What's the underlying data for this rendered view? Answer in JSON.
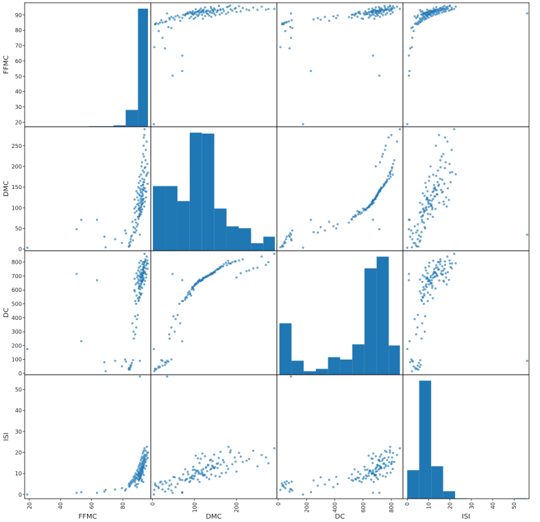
{
  "chart_data": {
    "type": "scatter_matrix",
    "variables": [
      "FFMC",
      "DMC",
      "DC",
      "ISI"
    ],
    "colors": {
      "bar": "#1f77b4",
      "point": "#1f77b4"
    },
    "ranges": {
      "FFMC": [
        17.0,
        98.0
      ],
      "DMC": [
        -4.0,
        296.0
      ],
      "DC": [
        -10.0,
        882.0
      ],
      "ISI": [
        -2.0,
        57.0
      ]
    },
    "ticks": {
      "FFMC": [
        20,
        40,
        60,
        80
      ],
      "DMC": [
        0,
        100,
        200
      ],
      "DC": [
        0,
        200,
        400,
        600,
        800
      ],
      "ISI": [
        0,
        10,
        20,
        30,
        40,
        50
      ]
    },
    "y_ticks": {
      "FFMC": [
        20,
        30,
        40,
        50,
        60,
        70,
        80,
        90
      ],
      "DMC": [
        0,
        50,
        100,
        150,
        200,
        250
      ],
      "DC": [
        0,
        100,
        200,
        300,
        400,
        500,
        600,
        700,
        800
      ],
      "ISI": [
        0,
        10,
        20,
        30,
        40,
        50
      ]
    },
    "histograms": {
      "FFMC": {
        "bin_edges": [
          18.7,
          26.6,
          34.5,
          42.4,
          50.3,
          58.2,
          66.1,
          74.0,
          81.9,
          89.8,
          96.2
        ],
        "counts": [
          1,
          0,
          0,
          0,
          1,
          2,
          2,
          5,
          63,
          443
        ]
      },
      "DMC": {
        "bin_edges": [
          1.1,
          30.3,
          59.5,
          88.7,
          117.9,
          147.1,
          176.3,
          205.5,
          234.7,
          263.9,
          291.3
        ],
        "counts": [
          69,
          69,
          53,
          126,
          125,
          45,
          26,
          24,
          8,
          15
        ]
      },
      "DC": {
        "bin_edges": [
          7.9,
          93.9,
          179.9,
          265.9,
          351.9,
          437.9,
          523.9,
          609.9,
          695.9,
          781.9,
          860.6
        ],
        "counts": [
          44,
          12,
          3,
          5,
          15,
          13,
          26,
          91,
          101,
          25
        ]
      },
      "ISI": {
        "bin_edges": [
          0.0,
          5.6,
          11.2,
          16.8,
          22.4,
          28.0,
          33.6,
          39.2,
          44.8,
          50.4,
          56.1
        ],
        "counts": [
          65,
          269,
          74,
          17,
          1,
          0,
          0,
          0,
          0,
          1
        ]
      }
    },
    "points": {
      "FFMC": [
        18.7,
        50.4,
        53.4,
        63.5,
        68.2,
        69.0,
        75.1,
        79.5,
        81.5,
        82.1,
        83.9,
        84.0,
        84.2,
        84.6,
        85.0,
        85.1,
        85.4,
        85.8,
        86.2,
        86.6,
        86.9,
        87.1,
        87.5,
        87.6,
        87.8,
        88.0,
        88.1,
        88.3,
        88.6,
        88.8,
        88.9,
        89.2,
        89.3,
        89.6,
        89.7,
        89.9,
        90.0,
        90.1,
        90.2,
        90.3,
        90.4,
        90.5,
        90.6,
        90.7,
        90.8,
        90.9,
        91.0,
        91.1,
        91.2,
        91.3,
        91.4,
        91.5,
        91.6,
        91.7,
        91.8,
        91.9,
        92.0,
        92.1,
        92.2,
        92.3,
        92.4,
        92.5,
        92.6,
        92.7,
        92.8,
        92.9,
        93.0,
        93.1,
        93.2,
        93.3,
        93.4,
        93.5,
        93.6,
        93.7,
        93.8,
        93.9,
        94.0,
        94.2,
        94.3,
        94.5,
        94.8,
        95.0,
        95.2,
        95.5,
        95.8,
        96.0,
        96.2,
        91.0,
        92.1,
        93.5,
        90.6,
        94.3,
        92.4,
        91.7,
        93.2,
        89.7,
        95.1,
        92.9,
        91.4,
        90.1,
        93.7,
        92.6,
        88.0,
        94.6,
        91.8,
        92.5,
        93.9,
        90.9,
        91.6,
        92.2,
        93.4,
        89.1,
        94.1,
        92.8,
        91.2,
        90.3,
        93.0,
        92.0,
        88.7,
        95.4,
        91.9,
        93.3,
        90.7,
        92.7
      ],
      "DMC": [
        3.2,
        48.0,
        70.8,
        71.0,
        30.0,
        4.4,
        24.0,
        15.0,
        45.0,
        38.0,
        6.3,
        6.2,
        14.0,
        9.0,
        18.0,
        24.0,
        30.0,
        33.0,
        66.0,
        21.0,
        53.0,
        41.0,
        98.0,
        120.0,
        88.0,
        50.0,
        71.0,
        102.0,
        64.0,
        140.0,
        92.0,
        108.0,
        125.0,
        135.0,
        78.0,
        150.0,
        110.0,
        118.0,
        97.0,
        160.0,
        105.0,
        95.0,
        132.0,
        175.0,
        85.0,
        147.0,
        129.0,
        112.0,
        100.0,
        165.0,
        142.0,
        122.0,
        137.0,
        180.0,
        117.0,
        153.0,
        200.0,
        108.0,
        128.0,
        145.0,
        210.0,
        96.0,
        170.0,
        133.0,
        119.0,
        190.0,
        155.0,
        230.0,
        143.0,
        162.0,
        250.0,
        270.0,
        224.0,
        186.0,
        103.0,
        276.0,
        290.0,
        115.0,
        147.0,
        198.0,
        240.0,
        125.0,
        139.0,
        181.0,
        206.0,
        158.0,
        185.0,
        35.0,
        90.0,
        122.0,
        99.0,
        140.0,
        108.0,
        84.0,
        112.0,
        60.0,
        177.0,
        130.0,
        89.0,
        73.0,
        162.0,
        110.0,
        40.0,
        215.0,
        101.0,
        138.0,
        168.0,
        82.0,
        95.0,
        127.0,
        149.0,
        55.0,
        196.0,
        118.0,
        93.0,
        78.0,
        156.0,
        114.0,
        45.0,
        260.0,
        104.0,
        144.0,
        80.0,
        121.0
      ],
      "DC": [
        175.0,
        715.0,
        231.0,
        670.0,
        80.0,
        15.0,
        90.0,
        50.0,
        100.0,
        85.0,
        34.0,
        26.0,
        40.0,
        30.0,
        45.0,
        55.0,
        60.0,
        75.0,
        360.0,
        95.0,
        300.0,
        250.0,
        600.0,
        680.0,
        590.0,
        410.0,
        520.0,
        640.0,
        500.0,
        720.0,
        560.0,
        650.0,
        690.0,
        705.0,
        540.0,
        740.0,
        660.0,
        675.0,
        610.0,
        760.0,
        645.0,
        620.0,
        700.0,
        795.0,
        580.0,
        730.0,
        695.0,
        668.0,
        630.0,
        770.0,
        715.0,
        685.0,
        710.0,
        810.0,
        670.0,
        745.0,
        690.0,
        660.0,
        698.0,
        725.0,
        720.0,
        615.0,
        785.0,
        705.0,
        672.0,
        800.0,
        750.0,
        740.0,
        718.0,
        765.0,
        760.0,
        780.0,
        735.0,
        790.0,
        640.0,
        800.0,
        860.0,
        666.0,
        728.0,
        805.0,
        755.0,
        690.0,
        712.0,
        792.0,
        812.0,
        752.0,
        790.0,
        90.0,
        575.0,
        685.0,
        628.0,
        718.0,
        658.0,
        565.0,
        675.0,
        420.0,
        778.0,
        700.0,
        570.0,
        520.0,
        760.0,
        665.0,
        280.0,
        820.0,
        640.0,
        710.0,
        770.0,
        545.0,
        620.0,
        692.0,
        728.0,
        390.0,
        805.0,
        670.0,
        605.0,
        530.0,
        748.0,
        662.0,
        330.0,
        840.0,
        648.0,
        722.0,
        550.0,
        688.0
      ],
      "ISI": [
        0.0,
        0.8,
        1.1,
        0.8,
        1.4,
        2.2,
        2.4,
        3.0,
        1.9,
        2.6,
        4.5,
        5.2,
        3.7,
        4.1,
        5.8,
        4.9,
        6.3,
        5.5,
        7.0,
        6.1,
        8.2,
        6.7,
        7.5,
        9.0,
        5.9,
        8.4,
        6.9,
        10.1,
        7.8,
        9.5,
        8.0,
        11.3,
        9.2,
        7.3,
        12.0,
        8.8,
        10.6,
        9.9,
        13.2,
        8.5,
        11.0,
        7.6,
        14.1,
        10.4,
        9.7,
        12.5,
        8.1,
        15.0,
        11.8,
        10.2,
        13.7,
        9.4,
        16.3,
        12.2,
        11.5,
        14.6,
        10.9,
        17.2,
        13.1,
        12.8,
        18.0,
        11.7,
        15.4,
        13.9,
        19.5,
        14.4,
        12.6,
        16.9,
        15.8,
        20.3,
        13.4,
        17.7,
        16.1,
        21.0,
        18.5,
        14.9,
        22.0,
        17.0,
        19.0,
        15.6,
        20.8,
        18.2,
        16.6,
        22.7,
        19.8,
        17.4,
        20.0,
        56.1,
        6.4,
        9.3,
        8.7,
        12.3,
        7.1,
        10.8,
        6.0,
        5.0,
        13.6,
        11.1,
        7.9,
        9.6,
        14.2,
        10.0,
        4.2,
        15.5,
        8.9,
        11.9,
        16.4,
        7.4,
        9.1,
        12.7,
        13.0,
        3.5,
        17.6,
        10.5,
        8.3,
        6.6,
        14.8,
        9.8,
        4.8,
        18.8,
        11.4,
        13.3,
        7.2,
        12.1
      ]
    }
  }
}
